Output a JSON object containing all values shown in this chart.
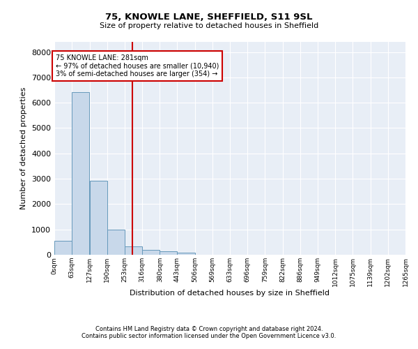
{
  "title1": "75, KNOWLE LANE, SHEFFIELD, S11 9SL",
  "title2": "Size of property relative to detached houses in Sheffield",
  "xlabel": "Distribution of detached houses by size in Sheffield",
  "ylabel": "Number of detached properties",
  "footnote1": "Contains HM Land Registry data © Crown copyright and database right 2024.",
  "footnote2": "Contains public sector information licensed under the Open Government Licence v3.0.",
  "bar_color": "#c8d8ea",
  "bar_edge_color": "#6699bb",
  "background_color": "#e8eef6",
  "vline_x": 281,
  "vline_color": "#cc0000",
  "annotation_lines": [
    "75 KNOWLE LANE: 281sqm",
    "← 97% of detached houses are smaller (10,940)",
    "3% of semi-detached houses are larger (354) →"
  ],
  "annotation_box_color": "#cc0000",
  "bins": [
    0,
    63,
    127,
    190,
    253,
    316,
    380,
    443,
    506,
    569,
    633,
    696,
    759,
    822,
    886,
    949,
    1012,
    1075,
    1139,
    1202,
    1265
  ],
  "bin_labels": [
    "0sqm",
    "63sqm",
    "127sqm",
    "190sqm",
    "253sqm",
    "316sqm",
    "380sqm",
    "443sqm",
    "506sqm",
    "569sqm",
    "633sqm",
    "696sqm",
    "759sqm",
    "822sqm",
    "886sqm",
    "949sqm",
    "1012sqm",
    "1075sqm",
    "1139sqm",
    "1202sqm",
    "1265sqm"
  ],
  "bar_heights": [
    560,
    6430,
    2920,
    980,
    340,
    180,
    130,
    75,
    0,
    0,
    0,
    0,
    0,
    0,
    0,
    0,
    0,
    0,
    0,
    0
  ],
  "ylim": [
    0,
    8400
  ],
  "yticks": [
    0,
    1000,
    2000,
    3000,
    4000,
    5000,
    6000,
    7000,
    8000
  ]
}
